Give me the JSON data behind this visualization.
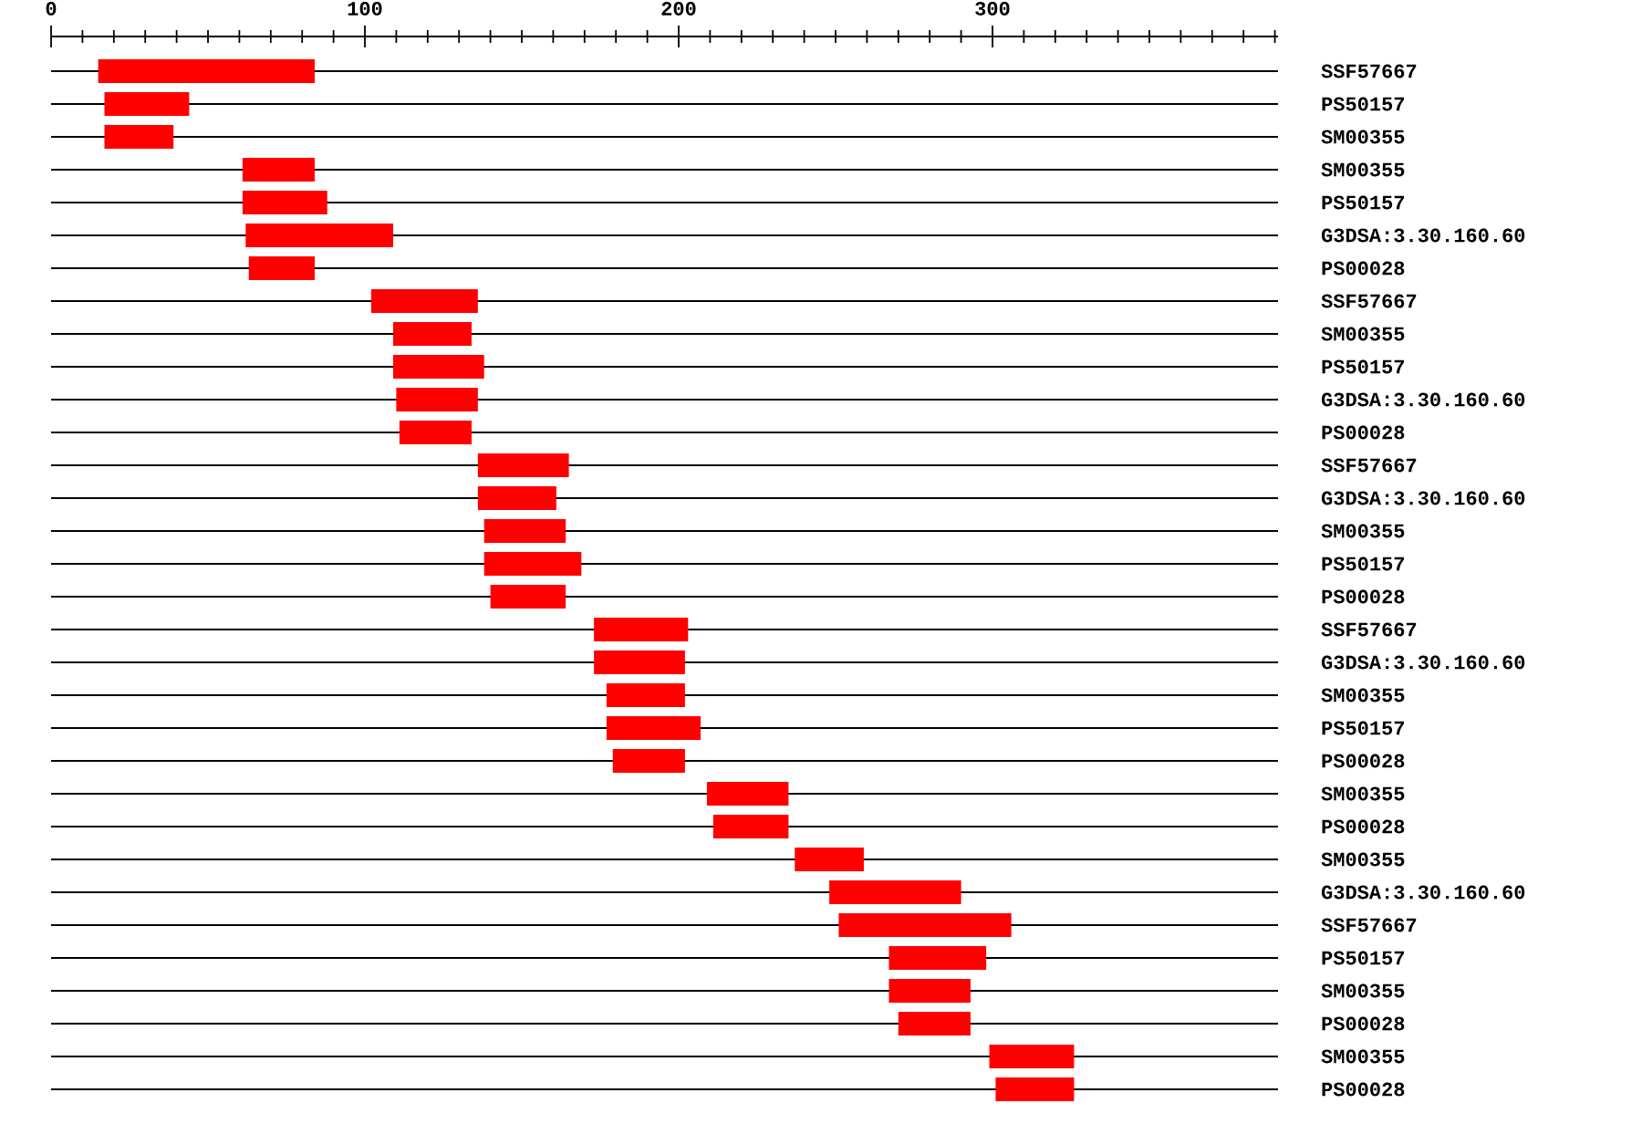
{
  "chart_data": {
    "type": "bar",
    "orientation": "horizontal",
    "color": "#ff0000",
    "grid": "y",
    "categories": [
      "SSF57667",
      "PS50157",
      "SM00355",
      "SM00355",
      "PS50157",
      "G3DSA:3.30.160.60",
      "PS00028",
      "SSF57667",
      "SM00355",
      "PS50157",
      "G3DSA:3.30.160.60",
      "PS00028",
      "SSF57667",
      "G3DSA:3.30.160.60",
      "SM00355",
      "PS50157",
      "PS00028",
      "SSF57667",
      "G3DSA:3.30.160.60",
      "SM00355",
      "PS50157",
      "PS00028",
      "SM00355",
      "PS00028",
      "SM00355",
      "G3DSA:3.30.160.60",
      "SSF57667",
      "PS50157",
      "SM00355",
      "PS00028",
      "SM00355",
      "PS00028"
    ],
    "base": [
      15,
      17,
      17,
      61,
      61,
      62,
      63,
      102,
      109,
      109,
      110,
      111,
      136,
      136,
      138,
      138,
      140,
      173,
      173,
      177,
      177,
      179,
      209,
      211,
      237,
      248,
      251,
      267,
      267,
      270,
      299,
      301
    ],
    "values": [
      69,
      27,
      22,
      23,
      27,
      47,
      21,
      34,
      25,
      29,
      26,
      23,
      29,
      25,
      26,
      31,
      24,
      30,
      29,
      25,
      30,
      23,
      26,
      24,
      22,
      42,
      55,
      31,
      26,
      23,
      27,
      25
    ],
    "xlim": [
      0,
      391
    ],
    "xticks": [
      0,
      {
        "value": 10,
        "label": null
      },
      {
        "value": 20,
        "label": null
      },
      {
        "value": 30,
        "label": null
      },
      {
        "value": 40,
        "label": null
      },
      {
        "value": 50,
        "label": null
      },
      {
        "value": 60,
        "label": null
      },
      {
        "value": 70,
        "label": null
      },
      {
        "value": 80,
        "label": null
      },
      {
        "value": 90,
        "label": null
      },
      100,
      {
        "value": 110,
        "label": null
      },
      {
        "value": 120,
        "label": null
      },
      {
        "value": 130,
        "label": null
      },
      {
        "value": 140,
        "label": null
      },
      {
        "value": 150,
        "label": null
      },
      {
        "value": 160,
        "label": null
      },
      {
        "value": 170,
        "label": null
      },
      {
        "value": 180,
        "label": null
      },
      {
        "value": 190,
        "label": null
      },
      200,
      {
        "value": 210,
        "label": null
      },
      {
        "value": 220,
        "label": null
      },
      {
        "value": 230,
        "label": null
      },
      {
        "value": 240,
        "label": null
      },
      {
        "value": 250,
        "label": null
      },
      {
        "value": 260,
        "label": null
      },
      {
        "value": 270,
        "label": null
      },
      {
        "value": 280,
        "label": null
      },
      {
        "value": 290,
        "label": null
      },
      300,
      {
        "value": 310,
        "label": null
      },
      {
        "value": 320,
        "label": null
      },
      {
        "value": 330,
        "label": null
      },
      {
        "value": 340,
        "label": null
      },
      {
        "value": 350,
        "label": null
      },
      {
        "value": 360,
        "label": null
      },
      {
        "value": 370,
        "label": null
      },
      {
        "value": 380,
        "label": null
      },
      {
        "value": 390,
        "label": null
      }
    ]
  }
}
